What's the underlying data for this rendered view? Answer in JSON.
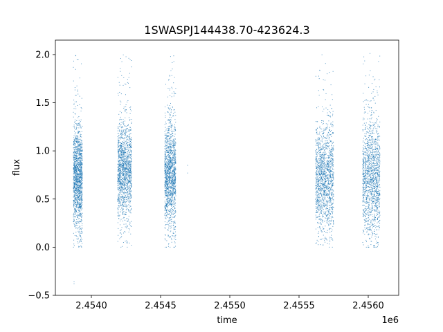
{
  "chart_data": {
    "type": "scatter",
    "title": "1SWASPJ144438.70-423624.3",
    "xlabel": "time",
    "ylabel": "flux",
    "x_offset_label": "1e6",
    "xlim": [
      2453740,
      2456220
    ],
    "ylim": [
      -0.5,
      2.15
    ],
    "x_ticks": [
      {
        "value": 2454000,
        "label": "2.4540"
      },
      {
        "value": 2454500,
        "label": "2.4545"
      },
      {
        "value": 2455000,
        "label": "2.4550"
      },
      {
        "value": 2455500,
        "label": "2.4555"
      },
      {
        "value": 2456000,
        "label": "2.4560"
      }
    ],
    "y_ticks": [
      {
        "value": -0.5,
        "label": "−0.5"
      },
      {
        "value": 0.0,
        "label": "0.0"
      },
      {
        "value": 0.5,
        "label": "0.5"
      },
      {
        "value": 1.0,
        "label": "1.0"
      },
      {
        "value": 1.5,
        "label": "1.5"
      },
      {
        "value": 2.0,
        "label": "2.0"
      }
    ],
    "grid": false,
    "marker_color": "#1f77b4",
    "clusters": [
      {
        "x_start": 2453870,
        "x_end": 2453935,
        "center": 0.72,
        "q_low": 0.45,
        "q_high": 1.0,
        "min": 0.0,
        "max": 2.04
      },
      {
        "x_start": 2454190,
        "x_end": 2454290,
        "center": 0.8,
        "q_low": 0.5,
        "q_high": 1.05,
        "min": 0.0,
        "max": 2.03
      },
      {
        "x_start": 2454530,
        "x_end": 2454610,
        "center": 0.75,
        "q_low": 0.45,
        "q_high": 1.05,
        "min": 0.0,
        "max": 1.99
      },
      {
        "x_start": 2455620,
        "x_end": 2455750,
        "center": 0.72,
        "q_low": 0.42,
        "q_high": 1.0,
        "min": 0.0,
        "max": 2.02
      },
      {
        "x_start": 2455960,
        "x_end": 2456085,
        "center": 0.72,
        "q_low": 0.4,
        "q_high": 1.05,
        "min": 0.0,
        "max": 2.03
      }
    ],
    "outliers": [
      {
        "x": 2453875,
        "y": -0.38
      },
      {
        "x": 2453875,
        "y": -0.36
      },
      {
        "x": 2454695,
        "y": 0.85
      },
      {
        "x": 2454695,
        "y": 0.77
      }
    ]
  }
}
